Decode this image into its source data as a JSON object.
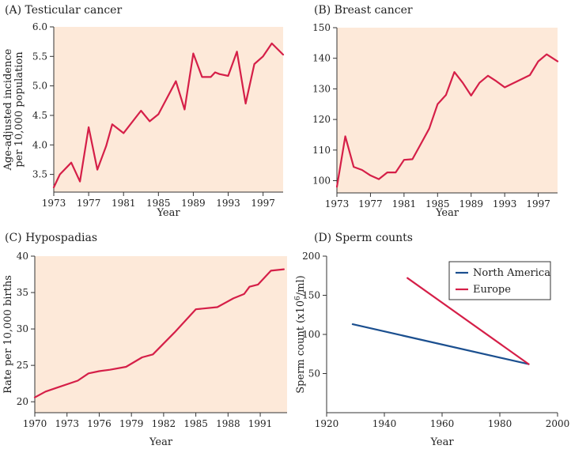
{
  "colors": {
    "plot_bg": "#fde9d9",
    "red": "#d51f48",
    "blue": "#1b4f8f",
    "axis": "#333333"
  },
  "chart_data": [
    {
      "id": "A",
      "type": "line",
      "title": "(A)  Testicular cancer",
      "xlabel": "Year",
      "ylabel": [
        "Age-adjusted incidence",
        "per 10,000 population"
      ],
      "xlim": [
        1973,
        1999.3
      ],
      "ylim": [
        3.2,
        6.0
      ],
      "xticks": [
        1973,
        1977,
        1981,
        1985,
        1989,
        1993,
        1997
      ],
      "xtick_labels": [
        "1973",
        "1977",
        "1981",
        "1985",
        "1989",
        "1993",
        "1997"
      ],
      "yticks": [
        3.5,
        4.0,
        4.5,
        5.0,
        5.5,
        6.0
      ],
      "ytick_labels": [
        "3.5",
        "4.0",
        "4.5",
        "5.0",
        "5.5",
        "6.0"
      ],
      "grid": false,
      "series": [
        {
          "color": "#d51f48",
          "x": [
            1973,
            1973.7,
            1975,
            1976,
            1977,
            1978,
            1979,
            1979.7,
            1981,
            1983,
            1984,
            1985,
            1987,
            1988,
            1989,
            1990,
            1991,
            1991.5,
            1992,
            1993,
            1994,
            1995,
            1996,
            1997,
            1998,
            1999.3
          ],
          "y": [
            3.28,
            3.5,
            3.7,
            3.38,
            4.3,
            3.58,
            3.98,
            4.35,
            4.2,
            4.58,
            4.4,
            4.52,
            5.08,
            4.6,
            5.55,
            5.15,
            5.15,
            5.23,
            5.2,
            5.17,
            5.58,
            4.7,
            5.37,
            5.5,
            5.72,
            5.53
          ]
        }
      ]
    },
    {
      "id": "B",
      "type": "line",
      "title": "(B)  Breast cancer",
      "xlabel": "Year",
      "ylabel": [],
      "xlim": [
        1973,
        1999.3
      ],
      "ylim": [
        96,
        150
      ],
      "xticks": [
        1973,
        1977,
        1981,
        1985,
        1989,
        1993,
        1997
      ],
      "xtick_labels": [
        "1973",
        "1977",
        "1981",
        "1985",
        "1989",
        "1993",
        "1997"
      ],
      "yticks": [
        100,
        110,
        120,
        130,
        140,
        150
      ],
      "ytick_labels": [
        "100",
        "110",
        "120",
        "130",
        "140",
        "150"
      ],
      "grid": false,
      "series": [
        {
          "color": "#d51f48",
          "x": [
            1973,
            1974,
            1975,
            1976,
            1977,
            1978,
            1979,
            1980,
            1981,
            1982,
            1983,
            1984,
            1985,
            1986,
            1987,
            1988,
            1989,
            1990,
            1991,
            1992,
            1993,
            1996,
            1997,
            1998,
            1999.3
          ],
          "y": [
            98,
            114.5,
            104.5,
            103.5,
            101.7,
            100.5,
            102.7,
            102.7,
            106.8,
            107,
            112,
            117,
            125,
            128,
            135.5,
            132,
            127.8,
            132,
            134.3,
            132.5,
            130.5,
            134.5,
            139,
            141.3,
            139
          ]
        }
      ]
    },
    {
      "id": "C",
      "type": "line",
      "title": "(C)  Hypospadias",
      "xlabel": "Year",
      "ylabel": [
        "Rate per 10,000 births"
      ],
      "xlim": [
        1970,
        1993.5
      ],
      "ylim": [
        18.5,
        40
      ],
      "xticks": [
        1970,
        1973,
        1976,
        1979,
        1982,
        1985,
        1988,
        1991
      ],
      "xtick_labels": [
        "1970",
        "1973",
        "1976",
        "1979",
        "1982",
        "1985",
        "1988",
        "1991"
      ],
      "yticks": [
        20,
        25,
        30,
        35,
        40
      ],
      "ytick_labels": [
        "20",
        "25",
        "30",
        "35",
        "40"
      ],
      "grid": false,
      "series": [
        {
          "color": "#d51f48",
          "x": [
            1970,
            1971,
            1972,
            1974,
            1975,
            1976,
            1977,
            1978.5,
            1980,
            1981,
            1983,
            1985,
            1987,
            1988.5,
            1989.5,
            1990,
            1990.8,
            1992,
            1993.2
          ],
          "y": [
            20.6,
            21.4,
            21.9,
            22.9,
            23.9,
            24.2,
            24.4,
            24.8,
            26.1,
            26.5,
            29.5,
            32.7,
            33.0,
            34.2,
            34.8,
            35.8,
            36.1,
            38.0,
            38.2
          ]
        }
      ]
    },
    {
      "id": "D",
      "type": "line",
      "title": "(D)  Sperm counts",
      "xlabel": "Year",
      "ylabel_parts": {
        "before": "Sperm count (x10",
        "sup": "6",
        "after": "/ml)"
      },
      "xlim": [
        1920,
        2000
      ],
      "ylim": [
        0,
        200
      ],
      "xticks": [
        1920,
        1940,
        1960,
        1980,
        2000
      ],
      "xtick_labels": [
        "1920",
        "1940",
        "1960",
        "1980",
        "2000"
      ],
      "yticks": [
        50,
        100,
        150,
        200
      ],
      "ytick_labels": [
        "50",
        "100",
        "150",
        "200"
      ],
      "grid": false,
      "legend": "top-right",
      "series": [
        {
          "name": "North America",
          "color": "#1b4f8f",
          "x": [
            1929,
            1990
          ],
          "y": [
            113,
            62
          ]
        },
        {
          "name": "Europe",
          "color": "#d51f48",
          "x": [
            1948,
            1990
          ],
          "y": [
            172,
            62
          ]
        }
      ]
    }
  ]
}
